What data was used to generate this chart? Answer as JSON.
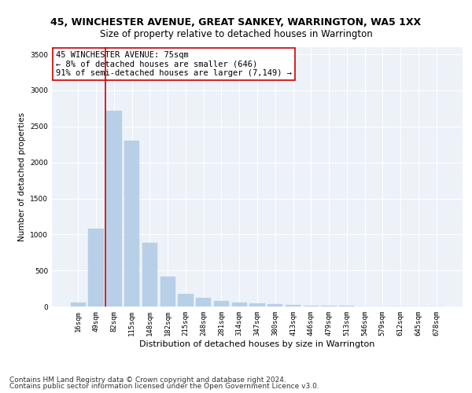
{
  "title": "45, WINCHESTER AVENUE, GREAT SANKEY, WARRINGTON, WA5 1XX",
  "subtitle": "Size of property relative to detached houses in Warrington",
  "xlabel": "Distribution of detached houses by size in Warrington",
  "ylabel": "Number of detached properties",
  "categories": [
    "16sqm",
    "49sqm",
    "82sqm",
    "115sqm",
    "148sqm",
    "182sqm",
    "215sqm",
    "248sqm",
    "281sqm",
    "314sqm",
    "347sqm",
    "380sqm",
    "413sqm",
    "446sqm",
    "479sqm",
    "513sqm",
    "546sqm",
    "579sqm",
    "612sqm",
    "645sqm",
    "678sqm"
  ],
  "values": [
    60,
    1080,
    2720,
    2300,
    880,
    420,
    170,
    120,
    80,
    55,
    40,
    35,
    25,
    15,
    10,
    8,
    5,
    4,
    3,
    2,
    2
  ],
  "bar_color": "#b8cfe8",
  "bar_edgecolor": "#b8cfe8",
  "vline_color": "#cc0000",
  "annotation_text": "45 WINCHESTER AVENUE: 75sqm\n← 8% of detached houses are smaller (646)\n91% of semi-detached houses are larger (7,149) →",
  "annotation_box_color": "#ffffff",
  "annotation_box_edgecolor": "#cc0000",
  "ylim": [
    0,
    3600
  ],
  "yticks": [
    0,
    500,
    1000,
    1500,
    2000,
    2500,
    3000,
    3500
  ],
  "footer_line1": "Contains HM Land Registry data © Crown copyright and database right 2024.",
  "footer_line2": "Contains public sector information licensed under the Open Government Licence v3.0.",
  "bg_color": "#edf2f9",
  "title_fontsize": 9,
  "subtitle_fontsize": 8.5,
  "xlabel_fontsize": 8,
  "ylabel_fontsize": 7.5,
  "tick_fontsize": 6.5,
  "annotation_fontsize": 7.5,
  "footer_fontsize": 6.5
}
